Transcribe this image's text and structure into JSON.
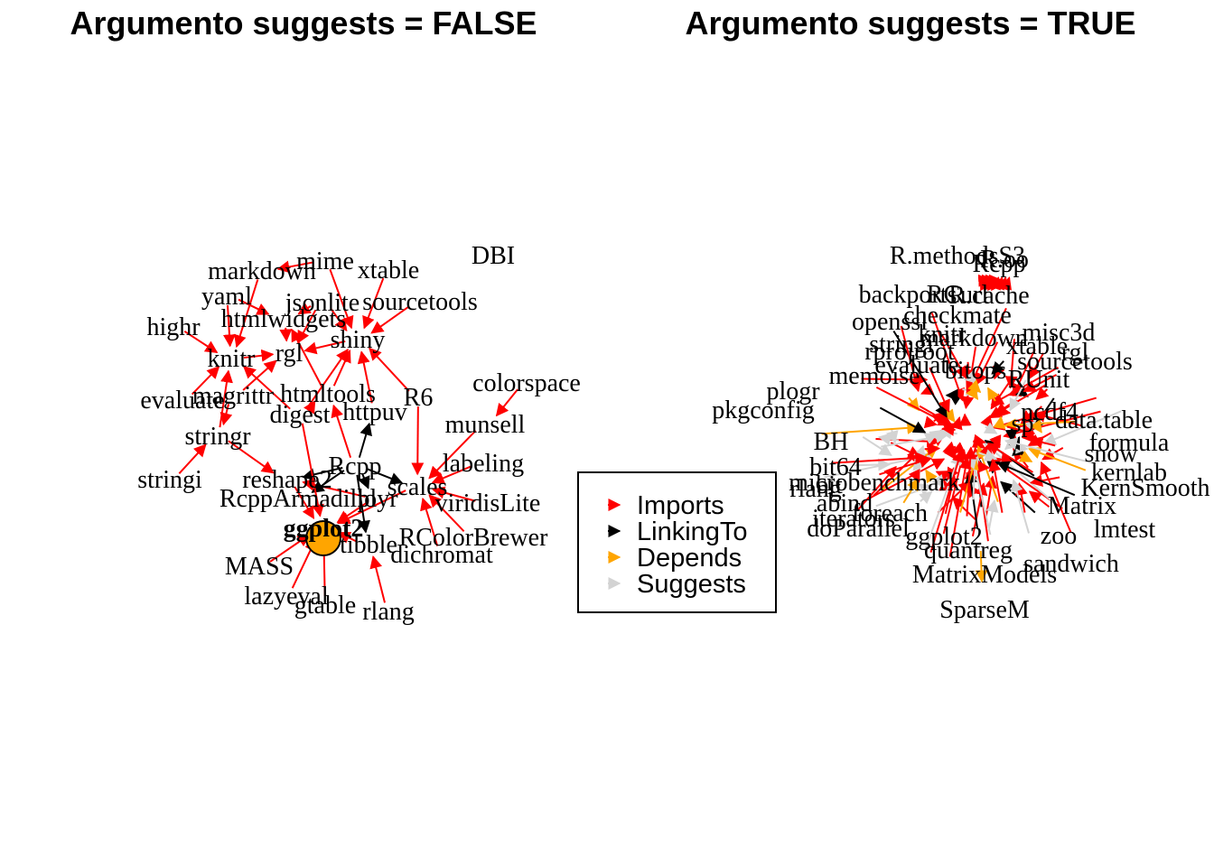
{
  "colors": {
    "Imports": "#ff0000",
    "LinkingTo": "#000000",
    "Depends": "#ffa500",
    "Suggests": "#d3d3d3",
    "hub_fill": "#ffa500"
  },
  "left_panel": {
    "title": "Argumento suggests = FALSE",
    "hub": "ggplot2",
    "nodes": [
      "DBI",
      "mime",
      "xtable",
      "markdown",
      "jsonlite",
      "sourcetools",
      "yaml",
      "htmlwidgets",
      "shiny",
      "highr",
      "rgl",
      "knitr",
      "colorspace",
      "R6",
      "evaluate",
      "magrittr",
      "htmltools",
      "digest",
      "httpuv",
      "munsell",
      "stringr",
      "labeling",
      "stringi",
      "reshape2",
      "Rcpp",
      "scales",
      "RcppArmadillo",
      "plyr",
      "viridisLite",
      "ggplot2",
      "RColorBrewer",
      "MASS",
      "tibble",
      "dichromat",
      "lazyeval",
      "gtable",
      "rlang"
    ],
    "edges": [
      [
        "mime",
        "shiny",
        "Imports"
      ],
      [
        "xtable",
        "shiny",
        "Imports"
      ],
      [
        "sourcetools",
        "shiny",
        "Imports"
      ],
      [
        "jsonlite",
        "shiny",
        "Imports"
      ],
      [
        "htmltools",
        "shiny",
        "Imports"
      ],
      [
        "digest",
        "shiny",
        "Imports"
      ],
      [
        "httpuv",
        "shiny",
        "Imports"
      ],
      [
        "R6",
        "shiny",
        "Imports"
      ],
      [
        "jsonlite",
        "htmlwidgets",
        "Imports"
      ],
      [
        "yaml",
        "htmlwidgets",
        "Imports"
      ],
      [
        "htmltools",
        "htmlwidgets",
        "Imports"
      ],
      [
        "htmlwidgets",
        "rgl",
        "Imports"
      ],
      [
        "shiny",
        "rgl",
        "Imports"
      ],
      [
        "knitr",
        "rgl",
        "Imports"
      ],
      [
        "magrittr",
        "rgl",
        "Imports"
      ],
      [
        "jsonlite",
        "rgl",
        "Imports"
      ],
      [
        "markdown",
        "knitr",
        "Imports"
      ],
      [
        "highr",
        "knitr",
        "Imports"
      ],
      [
        "yaml",
        "knitr",
        "Imports"
      ],
      [
        "evaluate",
        "knitr",
        "Imports"
      ],
      [
        "stringr",
        "knitr",
        "Imports"
      ],
      [
        "digest",
        "knitr",
        "Imports"
      ],
      [
        "mime",
        "markdown",
        "Imports"
      ],
      [
        "stringi",
        "stringr",
        "Imports"
      ],
      [
        "magrittr",
        "stringr",
        "Imports"
      ],
      [
        "digest",
        "htmltools",
        "Imports"
      ],
      [
        "Rcpp",
        "htmltools",
        "Imports"
      ],
      [
        "Rcpp",
        "httpuv",
        "LinkingTo"
      ],
      [
        "R6",
        "scales",
        "Imports"
      ],
      [
        "labeling",
        "scales",
        "Imports"
      ],
      [
        "munsell",
        "scales",
        "Imports"
      ],
      [
        "viridisLite",
        "scales",
        "Imports"
      ],
      [
        "RColorBrewer",
        "scales",
        "Imports"
      ],
      [
        "dichromat",
        "scales",
        "Imports"
      ],
      [
        "Rcpp",
        "scales",
        "LinkingTo"
      ],
      [
        "colorspace",
        "munsell",
        "Imports"
      ],
      [
        "plyr",
        "reshape2",
        "Imports"
      ],
      [
        "Rcpp",
        "reshape2",
        "LinkingTo"
      ],
      [
        "stringr",
        "reshape2",
        "Imports"
      ],
      [
        "Rcpp",
        "plyr",
        "LinkingTo"
      ],
      [
        "Rcpp",
        "RcppArmadillo",
        "LinkingTo"
      ],
      [
        "scales",
        "ggplot2",
        "Imports"
      ],
      [
        "reshape2",
        "ggplot2",
        "Imports"
      ],
      [
        "plyr",
        "ggplot2",
        "Imports"
      ],
      [
        "MASS",
        "ggplot2",
        "Imports"
      ],
      [
        "tibble",
        "ggplot2",
        "Imports"
      ],
      [
        "lazyeval",
        "ggplot2",
        "Imports"
      ],
      [
        "gtable",
        "ggplot2",
        "Imports"
      ],
      [
        "digest",
        "ggplot2",
        "Imports"
      ],
      [
        "rlang",
        "tibble",
        "Imports"
      ],
      [
        "Rcpp",
        "tibble",
        "LinkingTo"
      ]
    ]
  },
  "right_panel": {
    "title": "Argumento suggests = TRUE",
    "nodes": [
      "R.methodsS3",
      "R.oo",
      "Rcpp",
      "backports",
      "RCurl",
      "R.cache",
      "openssl",
      "checkmate",
      "stringi",
      "knitr",
      "markdown",
      "misc3d",
      "rprojroot",
      "xtable",
      "rgl",
      "RUnit",
      "evaluate",
      "bitops",
      "sourcetools",
      "memoise",
      "plogr",
      "sp",
      "ncdf4",
      "pkgconfig",
      "data.table",
      "BH",
      "formula",
      "kernlab",
      "bit64",
      "bit",
      "rlang",
      "snow",
      "KernSmooth",
      "abind",
      "iterators",
      "foreach",
      "lmtest",
      "doParallel",
      "ggplot2",
      "quantreg",
      "sandwich",
      "MatrixModels",
      "SparseM",
      "microbenchmark",
      "zoo",
      "Matrix"
    ]
  },
  "legend": {
    "items": [
      {
        "label": "Imports",
        "key": "Imports"
      },
      {
        "label": "LinkingTo",
        "key": "LinkingTo"
      },
      {
        "label": "Depends",
        "key": "Depends"
      },
      {
        "label": "Suggests",
        "key": "Suggests"
      }
    ]
  }
}
